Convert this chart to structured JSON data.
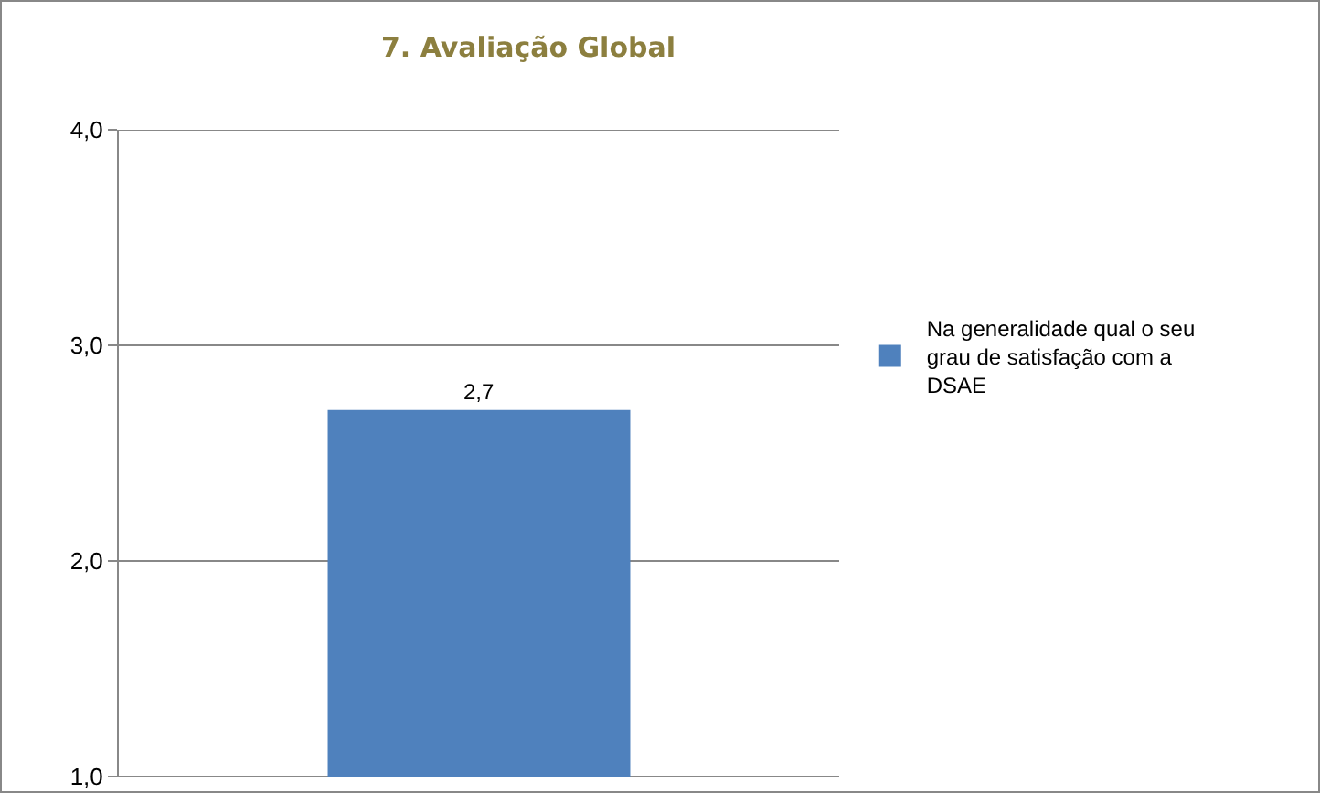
{
  "chart_data": {
    "type": "bar",
    "title": "7. Avaliação Global",
    "categories": [
      null
    ],
    "series": [
      {
        "name": "Na generalidade qual o seu grau de satisfação com a DSAE",
        "color": "#4f81bd",
        "values": [
          2.7
        ],
        "value_labels": [
          "2,7"
        ]
      }
    ],
    "ylim": [
      1,
      4
    ],
    "yticks": [
      {
        "value": 1,
        "label": "1,0"
      },
      {
        "value": 2,
        "label": "2,0"
      },
      {
        "value": 3,
        "label": "3,0"
      },
      {
        "value": 4,
        "label": "4,0"
      }
    ],
    "grid": "y",
    "legend": "right"
  }
}
